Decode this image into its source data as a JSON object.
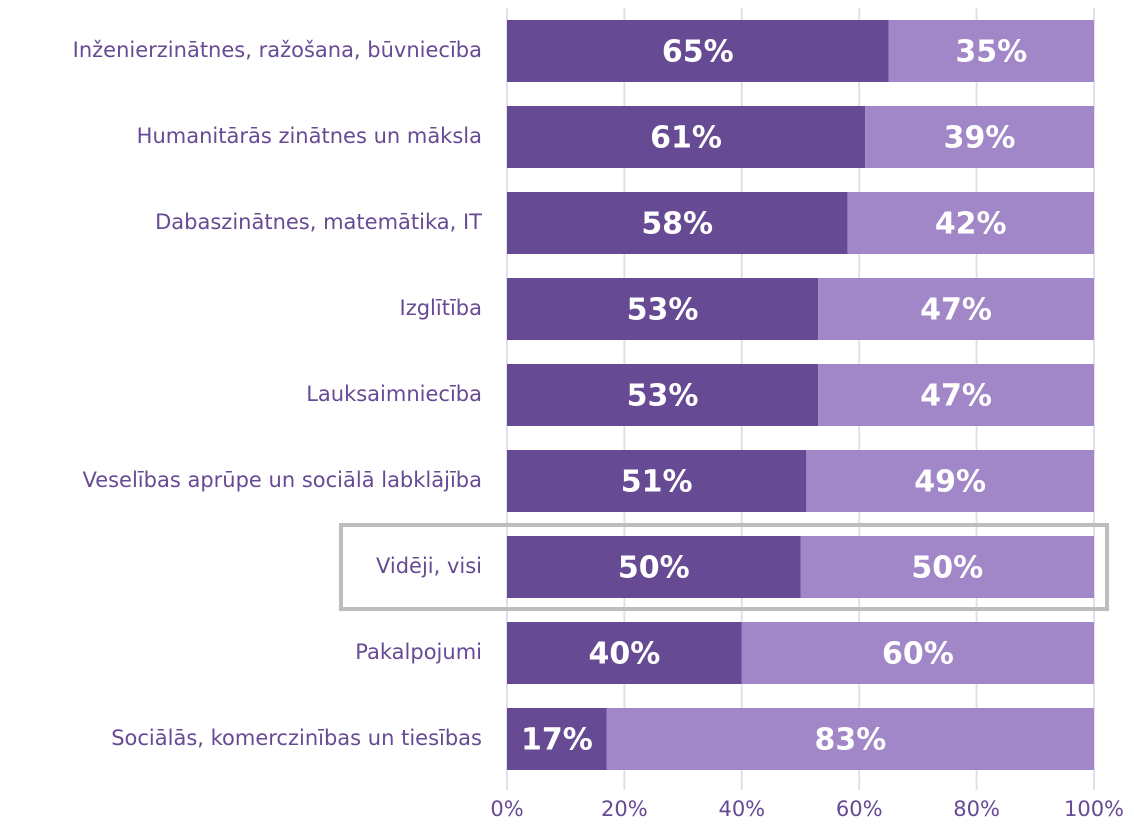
{
  "chart_data": {
    "type": "stacked_barh",
    "categories": [
      "Inženierzinātnes, ražošana, būvniecība",
      "Humanitārās zinātnes un māksla",
      "Dabaszinātnes, matemātika, IT",
      "Izglītība",
      "Lauksaimniecība",
      "Veselības aprūpe un sociālā labklājība",
      "Vidēji, visi",
      "Pakalpojumi",
      "Sociālās, komerczinības un tiesības"
    ],
    "series": [
      {
        "color": "#674a94",
        "values": [
          65,
          61,
          58,
          53,
          53,
          51,
          50,
          40,
          17
        ],
        "value_labels": [
          "65%",
          "61%",
          "58%",
          "53%",
          "53%",
          "51%",
          "50%",
          "40%",
          "17%"
        ]
      },
      {
        "color": "#a187c7",
        "values": [
          35,
          39,
          42,
          47,
          47,
          49,
          50,
          60,
          83
        ],
        "value_labels": [
          "35%",
          "39%",
          "42%",
          "47%",
          "47%",
          "49%",
          "50%",
          "60%",
          "83%"
        ]
      }
    ],
    "xlim": [
      0,
      100
    ],
    "xticks": [
      {
        "value": 0,
        "label": "0%"
      },
      {
        "value": 20,
        "label": "20%"
      },
      {
        "value": 40,
        "label": "40%"
      },
      {
        "value": 60,
        "label": "60%"
      },
      {
        "value": 80,
        "label": "80%"
      },
      {
        "value": 100,
        "label": "100%"
      }
    ],
    "grid": true,
    "highlight": 6
  }
}
